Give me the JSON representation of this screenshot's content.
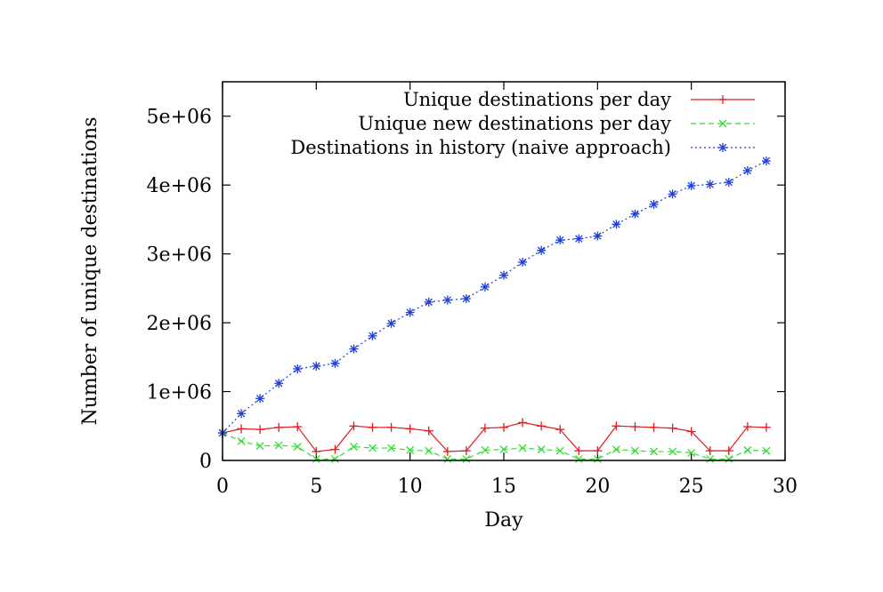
{
  "chart_data": {
    "type": "line",
    "title": "",
    "xlabel": "Day",
    "ylabel": "Number of unique destinations",
    "xlim": [
      0,
      30
    ],
    "ylim": [
      0,
      5500000
    ],
    "xticks": [
      0,
      5,
      10,
      15,
      20,
      25,
      30
    ],
    "xtick_labels": [
      "0",
      "5",
      "10",
      "15",
      "20",
      "25",
      "30"
    ],
    "yticks": [
      0,
      1000000,
      2000000,
      3000000,
      4000000,
      5000000
    ],
    "ytick_labels": [
      "0",
      "1e+06",
      "2e+06",
      "3e+06",
      "4e+06",
      "5e+06"
    ],
    "grid": false,
    "legend_position": "top-right",
    "x": [
      0,
      1,
      2,
      3,
      4,
      5,
      6,
      7,
      8,
      9,
      10,
      11,
      12,
      13,
      14,
      15,
      16,
      17,
      18,
      19,
      20,
      21,
      22,
      23,
      24,
      25,
      26,
      27,
      28,
      29
    ],
    "series": [
      {
        "name": "Unique destinations per day",
        "color": "#e41a1c",
        "dash": "solid",
        "marker": "plus",
        "values": [
          400000,
          460000,
          450000,
          480000,
          490000,
          130000,
          160000,
          500000,
          480000,
          480000,
          460000,
          430000,
          130000,
          140000,
          470000,
          480000,
          550000,
          500000,
          450000,
          140000,
          140000,
          500000,
          490000,
          480000,
          470000,
          420000,
          140000,
          140000,
          490000,
          480000
        ]
      },
      {
        "name": "Unique new destinations per day",
        "color": "#33dd33",
        "dash": "dashed",
        "marker": "cross",
        "values": [
          400000,
          280000,
          210000,
          220000,
          200000,
          20000,
          20000,
          200000,
          180000,
          180000,
          150000,
          140000,
          20000,
          20000,
          150000,
          160000,
          180000,
          160000,
          140000,
          20000,
          20000,
          160000,
          140000,
          130000,
          130000,
          110000,
          20000,
          20000,
          150000,
          140000
        ]
      },
      {
        "name": "Destinations in history (naive approach)",
        "color": "#1f3fd8",
        "dash": "dotted",
        "marker": "star",
        "values": [
          400000,
          680000,
          900000,
          1120000,
          1330000,
          1370000,
          1410000,
          1620000,
          1810000,
          1990000,
          2150000,
          2300000,
          2330000,
          2350000,
          2520000,
          2690000,
          2880000,
          3050000,
          3200000,
          3220000,
          3260000,
          3430000,
          3580000,
          3720000,
          3870000,
          3990000,
          4010000,
          4040000,
          4210000,
          4350000
        ]
      }
    ]
  }
}
